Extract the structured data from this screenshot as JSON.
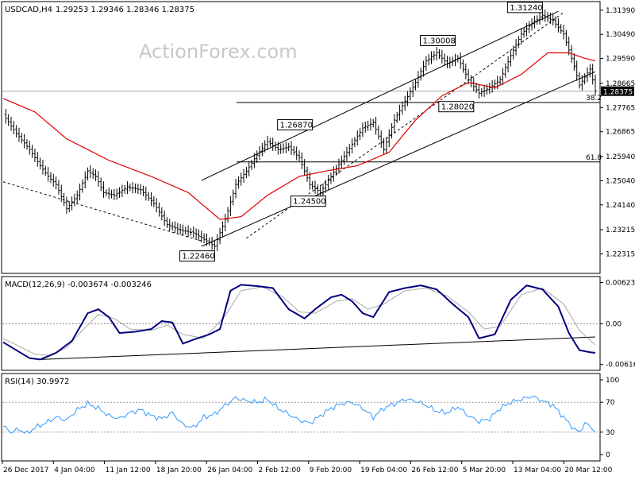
{
  "watermark": "ActionForex.com",
  "chart_data": [
    {
      "type": "candlestick",
      "title": "USDCAD,H4",
      "ohlc_text": "1.29253 1.29346 1.28346 1.28375",
      "ylim": [
        1.2165,
        1.3165
      ],
      "y_ticks": [
        "1.31390",
        "1.30490",
        "1.29590",
        "1.28665",
        "1.27765",
        "1.26865",
        "1.25940",
        "1.25040",
        "1.24140",
        "1.23215",
        "1.22315"
      ],
      "current_price_label": "1.28375",
      "annotations": [
        "1.31240",
        "1.30008",
        "1.28020",
        "1.26870",
        "1.24500",
        "1.22460"
      ],
      "fib_levels": [
        {
          "label": "38.2",
          "value": 1.2795
        },
        {
          "label": "61.8",
          "value": 1.2574
        }
      ],
      "close_trajectory": [
        [
          0,
          1.275
        ],
        [
          5,
          1.268
        ],
        [
          10,
          1.262
        ],
        [
          14,
          1.256
        ],
        [
          17,
          1.252
        ],
        [
          20,
          1.249
        ],
        [
          24,
          1.24
        ],
        [
          28,
          1.245
        ],
        [
          32,
          1.254
        ],
        [
          35,
          1.252
        ],
        [
          38,
          1.246
        ],
        [
          42,
          1.245
        ],
        [
          47,
          1.248
        ],
        [
          52,
          1.247
        ],
        [
          57,
          1.242
        ],
        [
          62,
          1.234
        ],
        [
          67,
          1.232
        ],
        [
          72,
          1.231
        ],
        [
          77,
          1.228
        ],
        [
          80,
          1.226
        ],
        [
          84,
          1.236
        ],
        [
          88,
          1.249
        ],
        [
          92,
          1.254
        ],
        [
          96,
          1.26
        ],
        [
          100,
          1.265
        ],
        [
          104,
          1.262
        ],
        [
          108,
          1.263
        ],
        [
          112,
          1.259
        ],
        [
          116,
          1.249
        ],
        [
          120,
          1.246
        ],
        [
          124,
          1.252
        ],
        [
          128,
          1.258
        ],
        [
          132,
          1.264
        ],
        [
          136,
          1.27
        ],
        [
          140,
          1.272
        ],
        [
          144,
          1.262
        ],
        [
          148,
          1.273
        ],
        [
          152,
          1.28
        ],
        [
          156,
          1.287
        ],
        [
          160,
          1.295
        ],
        [
          164,
          1.298
        ],
        [
          168,
          1.294
        ],
        [
          172,
          1.296
        ],
        [
          176,
          1.288
        ],
        [
          180,
          1.283
        ],
        [
          184,
          1.285
        ],
        [
          188,
          1.288
        ],
        [
          192,
          1.297
        ],
        [
          196,
          1.305
        ],
        [
          200,
          1.309
        ],
        [
          204,
          1.312
        ],
        [
          208,
          1.31
        ],
        [
          212,
          1.305
        ],
        [
          216,
          1.293
        ],
        [
          218,
          1.286
        ],
        [
          220,
          1.289
        ],
        [
          222,
          1.292
        ],
        [
          224,
          1.2838
        ]
      ],
      "ma_trajectory": [
        [
          0,
          1.281
        ],
        [
          12,
          1.276
        ],
        [
          24,
          1.266
        ],
        [
          40,
          1.258
        ],
        [
          56,
          1.252
        ],
        [
          70,
          1.246
        ],
        [
          82,
          1.236
        ],
        [
          90,
          1.237
        ],
        [
          100,
          1.245
        ],
        [
          112,
          1.252
        ],
        [
          122,
          1.254
        ],
        [
          134,
          1.256
        ],
        [
          146,
          1.261
        ],
        [
          156,
          1.273
        ],
        [
          166,
          1.282
        ],
        [
          176,
          1.287
        ],
        [
          186,
          1.285
        ],
        [
          196,
          1.29
        ],
        [
          206,
          1.298
        ],
        [
          214,
          1.298
        ],
        [
          220,
          1.296
        ],
        [
          224,
          1.295
        ]
      ],
      "trend_lines": [
        {
          "from": [
            75,
            1.226
          ],
          "to": [
            224,
            1.291
          ]
        },
        {
          "from": [
            75,
            1.2505
          ],
          "to": [
            210,
            1.3135
          ]
        },
        {
          "from": [
            0,
            1.25
          ],
          "to": [
            75,
            1.228
          ]
        },
        {
          "from": [
            92,
            1.229
          ],
          "to": [
            212,
            1.313
          ]
        }
      ],
      "x_ticks": [
        "26 Dec 2017",
        "4 Jan 04:00",
        "11 Jan 12:00",
        "18 Jan 20:00",
        "26 Jan 04:00",
        "2 Feb 12:00",
        "9 Feb 20:00",
        "19 Feb 04:00",
        "26 Feb 12:00",
        "5 Mar 20:00",
        "13 Mar 04:00",
        "20 Mar 12:00"
      ]
    },
    {
      "type": "line",
      "title": "MACD(12,26,9) -0.003674 -0.003246",
      "ylim": [
        -0.0068,
        0.0069
      ],
      "y_ticks": [
        "0.006232",
        "0.00",
        "-0.006163"
      ],
      "macd": [
        [
          0,
          -0.0028
        ],
        [
          5,
          -0.004
        ],
        [
          10,
          -0.0052
        ],
        [
          14,
          -0.0054
        ],
        [
          20,
          -0.0044
        ],
        [
          26,
          -0.0026
        ],
        [
          32,
          0.0016
        ],
        [
          36,
          0.0022
        ],
        [
          40,
          0.001
        ],
        [
          44,
          -0.0014
        ],
        [
          50,
          -0.0012
        ],
        [
          56,
          -0.0008
        ],
        [
          60,
          0.0004
        ],
        [
          64,
          0.0002
        ],
        [
          68,
          -0.003
        ],
        [
          72,
          -0.0024
        ],
        [
          78,
          -0.0016
        ],
        [
          82,
          -0.0008
        ],
        [
          86,
          0.005
        ],
        [
          90,
          0.0059
        ],
        [
          96,
          0.0057
        ],
        [
          102,
          0.0054
        ],
        [
          108,
          0.0022
        ],
        [
          114,
          0.0008
        ],
        [
          118,
          0.0022
        ],
        [
          124,
          0.004
        ],
        [
          128,
          0.0044
        ],
        [
          132,
          0.0034
        ],
        [
          136,
          0.0016
        ],
        [
          140,
          0.001
        ],
        [
          146,
          0.0048
        ],
        [
          152,
          0.0054
        ],
        [
          158,
          0.0058
        ],
        [
          164,
          0.0052
        ],
        [
          170,
          0.003
        ],
        [
          176,
          0.001
        ],
        [
          180,
          -0.0022
        ],
        [
          186,
          -0.0016
        ],
        [
          192,
          0.0036
        ],
        [
          198,
          0.0058
        ],
        [
          204,
          0.0052
        ],
        [
          210,
          0.0026
        ],
        [
          214,
          -0.0014
        ],
        [
          218,
          -0.004
        ],
        [
          222,
          -0.0043
        ],
        [
          224,
          -0.0044
        ]
      ],
      "signal": [
        [
          0,
          -0.0022
        ],
        [
          6,
          -0.0034
        ],
        [
          12,
          -0.0046
        ],
        [
          18,
          -0.0048
        ],
        [
          24,
          -0.0036
        ],
        [
          30,
          -0.001
        ],
        [
          36,
          0.0014
        ],
        [
          42,
          0.0008
        ],
        [
          48,
          -0.0008
        ],
        [
          56,
          -0.001
        ],
        [
          62,
          -0.0002
        ],
        [
          68,
          -0.0016
        ],
        [
          76,
          -0.0022
        ],
        [
          84,
          0.0012
        ],
        [
          90,
          0.005
        ],
        [
          98,
          0.0056
        ],
        [
          106,
          0.004
        ],
        [
          112,
          0.0018
        ],
        [
          118,
          0.0016
        ],
        [
          126,
          0.0034
        ],
        [
          132,
          0.0038
        ],
        [
          138,
          0.0022
        ],
        [
          144,
          0.003
        ],
        [
          152,
          0.005
        ],
        [
          160,
          0.0054
        ],
        [
          168,
          0.0042
        ],
        [
          176,
          0.0018
        ],
        [
          182,
          -0.0008
        ],
        [
          188,
          -0.0004
        ],
        [
          196,
          0.0044
        ],
        [
          204,
          0.0054
        ],
        [
          212,
          0.003
        ],
        [
          218,
          -0.001
        ],
        [
          224,
          -0.0032
        ]
      ],
      "trend_lines": [
        {
          "from": [
            14,
            -0.0054
          ],
          "to": [
            224,
            -0.002
          ]
        }
      ]
    },
    {
      "type": "line",
      "title": "RSI(14) 30.9972",
      "ylim": [
        0,
        100
      ],
      "y_ticks": [
        "100",
        "70",
        "30",
        "0"
      ],
      "levels": [
        70,
        30
      ],
      "rsi": [
        [
          0,
          38
        ],
        [
          3,
          30
        ],
        [
          6,
          34
        ],
        [
          9,
          28
        ],
        [
          12,
          36
        ],
        [
          16,
          42
        ],
        [
          20,
          50
        ],
        [
          24,
          46
        ],
        [
          28,
          60
        ],
        [
          32,
          68
        ],
        [
          36,
          62
        ],
        [
          40,
          52
        ],
        [
          44,
          48
        ],
        [
          48,
          56
        ],
        [
          52,
          60
        ],
        [
          56,
          52
        ],
        [
          60,
          48
        ],
        [
          64,
          56
        ],
        [
          68,
          40
        ],
        [
          72,
          36
        ],
        [
          76,
          50
        ],
        [
          80,
          54
        ],
        [
          84,
          66
        ],
        [
          88,
          76
        ],
        [
          92,
          72
        ],
        [
          96,
          70
        ],
        [
          100,
          74
        ],
        [
          104,
          62
        ],
        [
          108,
          54
        ],
        [
          112,
          46
        ],
        [
          116,
          42
        ],
        [
          120,
          52
        ],
        [
          124,
          62
        ],
        [
          128,
          68
        ],
        [
          132,
          70
        ],
        [
          136,
          62
        ],
        [
          140,
          50
        ],
        [
          144,
          62
        ],
        [
          148,
          68
        ],
        [
          152,
          74
        ],
        [
          156,
          72
        ],
        [
          160,
          66
        ],
        [
          164,
          58
        ],
        [
          168,
          56
        ],
        [
          172,
          64
        ],
        [
          176,
          52
        ],
        [
          180,
          44
        ],
        [
          184,
          48
        ],
        [
          188,
          62
        ],
        [
          192,
          70
        ],
        [
          196,
          74
        ],
        [
          200,
          78
        ],
        [
          204,
          72
        ],
        [
          208,
          66
        ],
        [
          212,
          50
        ],
        [
          216,
          34
        ],
        [
          218,
          30
        ],
        [
          220,
          42
        ],
        [
          222,
          38
        ],
        [
          224,
          31
        ]
      ]
    }
  ]
}
